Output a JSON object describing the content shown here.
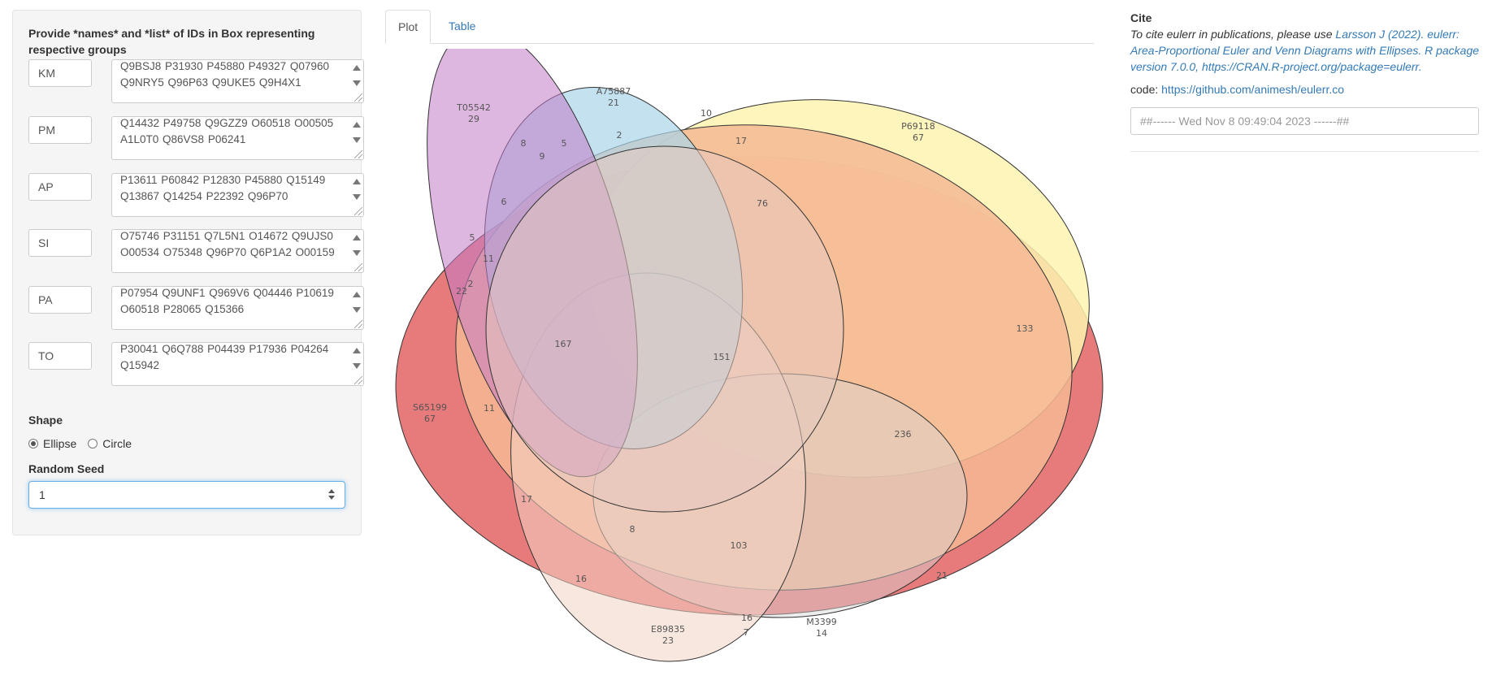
{
  "sidebar": {
    "heading": "Provide *names* and *list* of IDs in Box representing respective groups",
    "groups": [
      {
        "name": "KM",
        "ids": "Q9BSJ8 P31930 P45880 P49327 Q07960 Q9NRY5 Q96P63 Q9UKE5 Q9H4X1"
      },
      {
        "name": "PM",
        "ids": "Q14432 P49758 Q9GZZ9 O60518 O00505 A1L0T0 Q86VS8 P06241"
      },
      {
        "name": "AP",
        "ids": "P13611 P60842 P12830 P45880 Q15149 Q13867 Q14254 P22392 Q96P70"
      },
      {
        "name": "SI",
        "ids": "O75746 P31151 Q7L5N1 O14672 Q9UJS0 O00534 O75348 Q96P70 Q6P1A2 O00159"
      },
      {
        "name": "PA",
        "ids": "P07954 Q9UNF1 Q969V6 Q04446 P10619 O60518 P28065 Q15366"
      },
      {
        "name": "TO",
        "ids": "P30041 Q6Q788 P04439 P17936 P04264 Q15942"
      }
    ],
    "shape_label": "Shape",
    "shape_options": [
      "Ellipse",
      "Circle"
    ],
    "shape_selected": "Ellipse",
    "seed_label": "Random Seed",
    "seed_value": "1"
  },
  "tabs": [
    {
      "label": "Plot",
      "active": true
    },
    {
      "label": "Table",
      "active": false
    }
  ],
  "plot": {
    "set_labels": [
      {
        "name": "T05542",
        "count": "29"
      },
      {
        "name": "A75887",
        "count": "21"
      },
      {
        "name": "P69118",
        "count": "67"
      },
      {
        "name": "S65199",
        "count": "67"
      },
      {
        "name": "E89835",
        "count": "23"
      },
      {
        "name": "M3399",
        "count": "14"
      }
    ],
    "region_values": [
      "8",
      "9",
      "5",
      "2",
      "10",
      "17",
      "6",
      "76",
      "5",
      "11",
      "2",
      "22",
      "167",
      "151",
      "133",
      "11",
      "236",
      "17",
      "8",
      "103",
      "16",
      "16",
      "7",
      "21"
    ]
  },
  "cite": {
    "title": "Cite",
    "text": "To cite eulerr in publications, please use",
    "link": "Larsson J (2022). eulerr: Area-Proportional Euler and Venn Diagrams with Ellipses. R package version 7.0.0, https://CRAN.R-project.org/package=eulerr."
  },
  "code": {
    "label": "code:",
    "link": "https://github.com/animesh/eulerr.co"
  },
  "timestamp": "##------ Wed Nov  8 09:49:04 2023 ------##"
}
